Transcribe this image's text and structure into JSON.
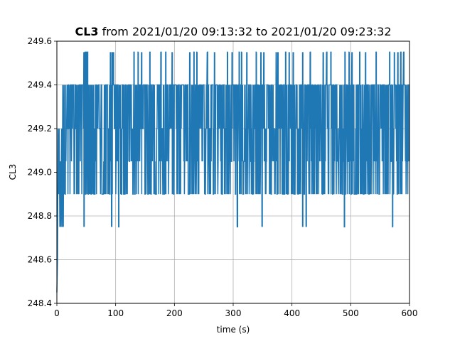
{
  "chart_data": {
    "type": "line",
    "title_bold": "CL3",
    "title_rest": " from 2021/01/20 09:13:32 to 2021/01/20 09:23:32",
    "xlabel": "time (s)",
    "ylabel": "CL3",
    "xlim": [
      0,
      600
    ],
    "ylim": [
      248.4,
      249.6
    ],
    "x_ticks": [
      0,
      100,
      200,
      300,
      400,
      500,
      600
    ],
    "y_ticks": [
      248.4,
      248.6,
      248.8,
      249.0,
      249.2,
      249.4,
      249.6
    ],
    "grid": true,
    "series": [
      {
        "color": "#1f77b4",
        "levels": [
          248.75,
          248.9,
          249.05,
          249.2,
          249.4,
          249.55
        ],
        "initial_points": [
          [
            0,
            248.45
          ],
          [
            1,
            248.6
          ],
          [
            2,
            249.2
          ],
          [
            3,
            248.9
          ],
          [
            4,
            249.2
          ],
          [
            5,
            248.75
          ],
          [
            6,
            249.05
          ],
          [
            7,
            248.75
          ],
          [
            8,
            249.2
          ],
          [
            9,
            248.75
          ],
          [
            10,
            249.4
          ],
          [
            11,
            248.75
          ],
          [
            12,
            249.4
          ]
        ],
        "spikes_high": [
          46,
          48,
          50,
          52,
          91,
          94,
          96,
          131,
          138,
          144,
          158,
          177,
          185,
          196,
          226,
          233,
          238,
          256,
          268,
          290,
          298,
          310,
          314,
          323,
          339,
          347,
          352,
          373,
          376,
          389,
          395,
          402,
          418,
          431,
          453,
          459,
          466,
          490,
          497,
          502,
          515,
          525,
          543,
          566,
          574,
          580,
          585,
          590
        ],
        "spikes_low": [
          46,
          93,
          105,
          307,
          349,
          418,
          424,
          489,
          571
        ],
        "samples": 1200,
        "x_range": [
          12,
          600
        ]
      }
    ]
  }
}
